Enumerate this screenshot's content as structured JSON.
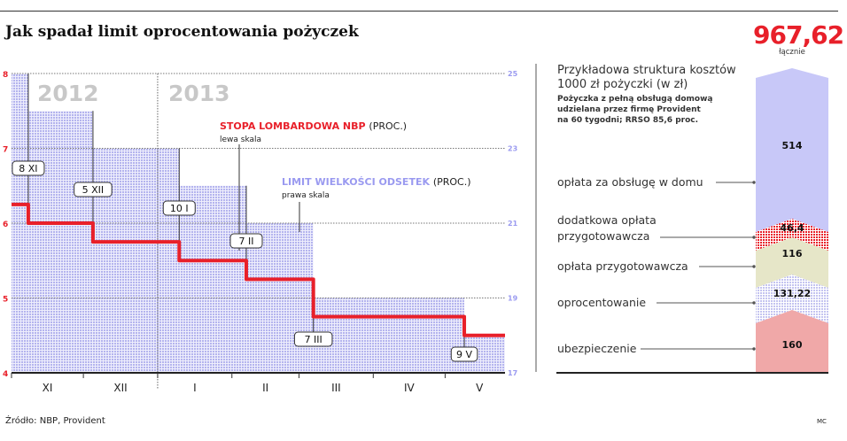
{
  "title": "Jak spadał limit oprocentowania pożyczek",
  "source": "Źródło: NBP, Provident",
  "author": "MC",
  "chart_data": [
    {
      "type": "line",
      "years": [
        "2012",
        "2013"
      ],
      "x_tick_labels": [
        "XI",
        "XII",
        "I",
        "II",
        "III",
        "IV",
        "V"
      ],
      "month_starts": [
        "2012-11-01",
        "2012-12-01",
        "2013-01-01",
        "2013-02-01",
        "2013-03-01",
        "2013-04-01",
        "2013-05-01"
      ],
      "xlim": [
        "2012-11-01",
        "2013-05-26"
      ],
      "left_axis": {
        "ylim": [
          4,
          8
        ],
        "ticks": [
          "8",
          "7",
          "6",
          "5",
          "4"
        ],
        "color": "#e8202a"
      },
      "right_axis": {
        "ylim": [
          17,
          25
        ],
        "ticks": [
          "25",
          "23",
          "21",
          "19",
          "17"
        ],
        "color": "#9a9af0"
      },
      "grid": true,
      "series": [
        {
          "name": "STOPA LOMBARDOWA NBP",
          "unit": "(PROC.)",
          "scale_note": "lewa skala",
          "color": "#e8202a",
          "axis": "left",
          "step": true,
          "points": [
            {
              "date": "2012-11-01",
              "value": 6.25
            },
            {
              "date": "2012-11-08",
              "value": 6.0
            },
            {
              "date": "2012-12-05",
              "value": 5.75
            },
            {
              "date": "2013-01-10",
              "value": 5.5
            },
            {
              "date": "2013-02-07",
              "value": 5.25
            },
            {
              "date": "2013-03-07",
              "value": 4.75
            },
            {
              "date": "2013-05-09",
              "value": 4.5
            }
          ]
        },
        {
          "name": "LIMIT WIELKOŚCI ODSETEK",
          "unit": "(PROC.)",
          "scale_note": "prawa skala",
          "color": "#9a9af0",
          "axis": "right",
          "type": "area-step",
          "points": [
            {
              "date": "2012-11-01",
              "value": 25
            },
            {
              "date": "2012-11-08",
              "value": 24
            },
            {
              "date": "2012-12-05",
              "value": 23
            },
            {
              "date": "2013-01-10",
              "value": 22
            },
            {
              "date": "2013-02-07",
              "value": 21
            },
            {
              "date": "2013-03-07",
              "value": 19
            },
            {
              "date": "2013-05-09",
              "value": 18
            }
          ]
        }
      ],
      "annotations": [
        {
          "label": "8 XI",
          "date": "2012-11-08"
        },
        {
          "label": "5 XII",
          "date": "2012-12-05"
        },
        {
          "label": "10 I",
          "date": "2013-01-10"
        },
        {
          "label": "7 II",
          "date": "2013-02-07"
        },
        {
          "label": "7 III",
          "date": "2013-03-07"
        },
        {
          "label": "9 V",
          "date": "2013-05-09"
        }
      ]
    },
    {
      "type": "bar",
      "stacked": true,
      "title": "Przykładowa struktura kosztów 1000 zł pożyczki (w zł)",
      "subtitle": "Pożyczka z pełną obsługą domową udzielana przez firmę Provident na 60 tygodni; RRSO 85,6 proc.",
      "total": "967,62",
      "total_label": "łącznie",
      "segments": [
        {
          "name": "ubezpieczenie",
          "value": 160,
          "label": "160",
          "color": "#f0a8a8"
        },
        {
          "name": "oprocentowanie",
          "value": 131.22,
          "label": "131,22",
          "color": "#c8c8f0"
        },
        {
          "name": "opłata przygotowawcza",
          "value": 116,
          "label": "116",
          "color": "#e6e6c8"
        },
        {
          "name": "dodatkowa opłata przygotowawcza",
          "value": 46.4,
          "label": "46,4",
          "color": "#e8202a"
        },
        {
          "name": "opłata za obsługę w domu",
          "value": 514,
          "label": "514",
          "color": "#c8c8f8"
        }
      ]
    }
  ],
  "right_panel": {
    "title_line1": "Przykładowa struktura kosztów",
    "title_line2": "1000 zł pożyczki (w zł)",
    "sub_line1": "Pożyczka z pełną obsługą domową",
    "sub_line2": "udzielana przez firmę Provident",
    "sub_line3": "na 60 tygodni; RRSO 85,6 proc.",
    "label_home_fee": "opłata za obsługę w domu",
    "label_extra_fee_1": "dodatkowa opłata",
    "label_extra_fee_2": "przygotowawcza"
  }
}
